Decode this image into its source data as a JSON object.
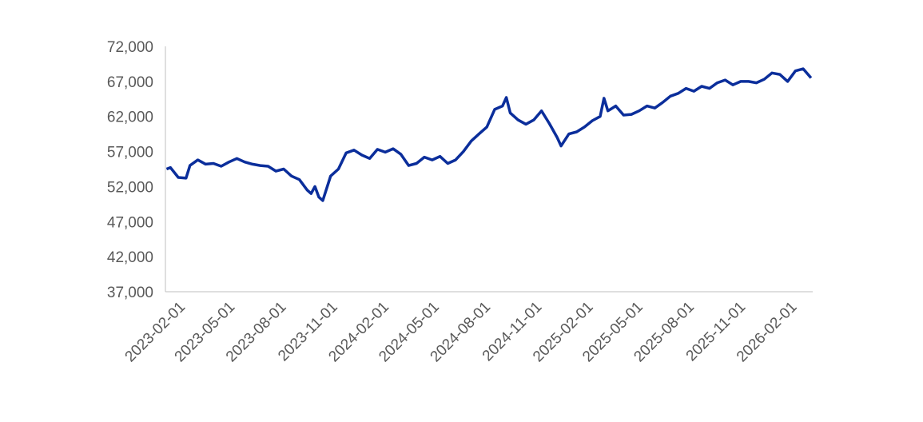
{
  "chart_data": {
    "type": "line",
    "x": [
      "2023-01-03",
      "2023-01-10",
      "2023-01-24",
      "2023-02-07",
      "2023-02-14",
      "2023-02-28",
      "2023-03-14",
      "2023-03-28",
      "2023-04-11",
      "2023-04-25",
      "2023-05-09",
      "2023-05-23",
      "2023-06-06",
      "2023-06-20",
      "2023-07-04",
      "2023-07-18",
      "2023-08-01",
      "2023-08-15",
      "2023-08-29",
      "2023-09-12",
      "2023-09-19",
      "2023-09-26",
      "2023-10-03",
      "2023-10-10",
      "2023-10-24",
      "2023-11-07",
      "2023-11-21",
      "2023-12-05",
      "2023-12-19",
      "2024-01-02",
      "2024-01-16",
      "2024-01-30",
      "2024-02-13",
      "2024-02-27",
      "2024-03-12",
      "2024-03-26",
      "2024-04-09",
      "2024-04-23",
      "2024-05-07",
      "2024-05-21",
      "2024-06-04",
      "2024-06-18",
      "2024-07-02",
      "2024-07-16",
      "2024-07-30",
      "2024-08-13",
      "2024-08-27",
      "2024-09-03",
      "2024-09-10",
      "2024-09-24",
      "2024-10-08",
      "2024-10-22",
      "2024-11-05",
      "2024-11-19",
      "2024-12-03",
      "2024-12-10",
      "2024-12-24",
      "2025-01-07",
      "2025-01-21",
      "2025-02-04",
      "2025-02-18",
      "2025-02-25",
      "2025-03-04",
      "2025-03-18",
      "2025-04-01",
      "2025-04-15",
      "2025-04-29",
      "2025-05-13",
      "2025-05-27",
      "2025-06-10",
      "2025-06-24",
      "2025-07-08",
      "2025-07-22",
      "2025-08-05",
      "2025-08-19",
      "2025-09-02",
      "2025-09-16",
      "2025-09-30",
      "2025-10-14",
      "2025-10-28",
      "2025-11-11",
      "2025-11-25",
      "2025-12-09",
      "2025-12-23",
      "2026-01-06",
      "2026-01-20",
      "2026-02-03",
      "2026-02-17",
      "2026-03-03"
    ],
    "series": [
      {
        "color": "#0b2e9b",
        "values": [
          54500,
          54700,
          53300,
          53200,
          55000,
          55800,
          55200,
          55300,
          54900,
          55500,
          56000,
          55500,
          55200,
          55000,
          54900,
          54200,
          54500,
          53500,
          53000,
          51500,
          51000,
          52000,
          50500,
          50000,
          53500,
          54500,
          56800,
          57200,
          56500,
          56000,
          57300,
          56900,
          57400,
          56600,
          55000,
          55300,
          56200,
          55800,
          56300,
          55300,
          55800,
          57000,
          58500,
          59500,
          60500,
          63000,
          63500,
          64700,
          62500,
          61500,
          60900,
          61500,
          62800,
          61000,
          59000,
          57800,
          59500,
          59800,
          60500,
          61400,
          62000,
          64600,
          62800,
          63500,
          62200,
          62300,
          62800,
          63500,
          63200,
          64000,
          64900,
          65300,
          66000,
          65600,
          66300,
          66000,
          66800,
          67200,
          66500,
          67000,
          67000,
          66800,
          67300,
          68200,
          68000,
          67000,
          68500,
          68800,
          67500
        ]
      }
    ],
    "xlim": [
      "2023-01-01",
      "2026-03-06"
    ],
    "xticks": [
      "2023-02-01",
      "2023-05-01",
      "2023-08-01",
      "2023-11-01",
      "2024-02-01",
      "2024-05-01",
      "2024-08-01",
      "2024-11-01",
      "2025-02-01",
      "2025-05-01",
      "2025-08-01",
      "2025-11-01",
      "2026-02-01"
    ],
    "ylim": [
      37000,
      72000
    ],
    "yticks": [
      {
        "value": 37000,
        "label": "37,000"
      },
      {
        "value": 42000,
        "label": "42,000"
      },
      {
        "value": 47000,
        "label": "47,000"
      },
      {
        "value": 52000,
        "label": "52,000"
      },
      {
        "value": 57000,
        "label": "57,000"
      },
      {
        "value": 62000,
        "label": "62,000"
      },
      {
        "value": 67000,
        "label": "67,000"
      },
      {
        "value": 72000,
        "label": "72,000"
      }
    ],
    "grid": false
  }
}
